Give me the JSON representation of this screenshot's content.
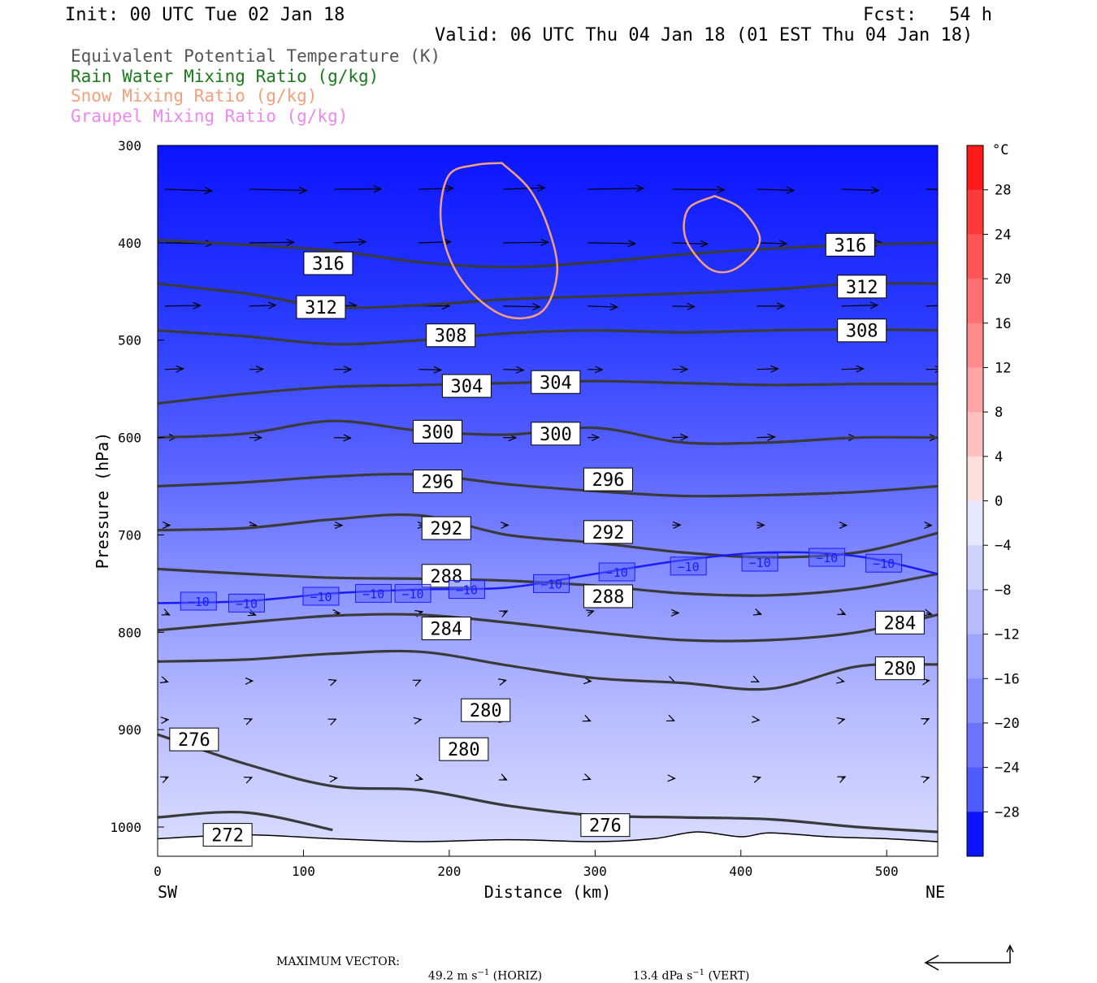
{
  "header": {
    "init": "Init: 00 UTC Tue 02 Jan 18",
    "fcst": "Fcst:   54 h",
    "valid": "Valid: 06 UTC Thu 04 Jan 18 (01 EST Thu 04 Jan 18)"
  },
  "fields": [
    {
      "label": "Equivalent Potential Temperature (K)",
      "color": "#555555"
    },
    {
      "label": "Rain Water Mixing Ratio (g/kg)",
      "color": "#1a7a1a"
    },
    {
      "label": "Snow Mixing Ratio (g/kg)",
      "color": "#f4a07a"
    },
    {
      "label": "Graupel Mixing Ratio (g/kg)",
      "color": "#ee88ee"
    }
  ],
  "colorbar": {
    "unit": "°C",
    "ticks": [
      "28",
      "24",
      "20",
      "16",
      "12",
      "8",
      "4",
      "0",
      "−4",
      "−8",
      "−12",
      "−16",
      "−20",
      "−24",
      "−28"
    ]
  },
  "footer": {
    "label": "MAXIMUM VECTOR:",
    "horiz_value": "49.2 m s",
    "horiz_unit": " (HORIZ)",
    "vert_value": "13.4 dPa s",
    "vert_unit": " (VERT)",
    "exponent": "−1"
  },
  "chart_data": {
    "type": "cross-section",
    "xlabel": "Distance (km)",
    "ylabel": "Pressure (hPa)",
    "xlim": [
      0,
      535
    ],
    "ylim": [
      1030,
      300
    ],
    "x_ticks": [
      0,
      100,
      200,
      300,
      400,
      500
    ],
    "y_ticks": [
      300,
      400,
      500,
      600,
      700,
      800,
      900,
      1000
    ],
    "x_end_labels": {
      "left": "SW",
      "right": "NE"
    },
    "theta_e_contours": [
      {
        "label": "316",
        "points": [
          [
            0,
            397
          ],
          [
            60,
            402
          ],
          [
            120,
            408
          ],
          [
            180,
            420
          ],
          [
            240,
            425
          ],
          [
            300,
            420
          ],
          [
            360,
            412
          ],
          [
            420,
            406
          ],
          [
            480,
            402
          ],
          [
            535,
            400
          ]
        ],
        "labels_at": [
          [
            117,
            421
          ],
          [
            475,
            402
          ]
        ]
      },
      {
        "label": "312",
        "points": [
          [
            0,
            442
          ],
          [
            60,
            452
          ],
          [
            120,
            466
          ],
          [
            180,
            464
          ],
          [
            240,
            458
          ],
          [
            300,
            455
          ],
          [
            360,
            452
          ],
          [
            420,
            448
          ],
          [
            480,
            442
          ],
          [
            535,
            442
          ]
        ],
        "labels_at": [
          [
            112,
            466
          ],
          [
            483,
            445
          ]
        ]
      },
      {
        "label": "308",
        "points": [
          [
            0,
            490
          ],
          [
            60,
            496
          ],
          [
            120,
            504
          ],
          [
            180,
            500
          ],
          [
            240,
            493
          ],
          [
            300,
            490
          ],
          [
            360,
            492
          ],
          [
            420,
            490
          ],
          [
            480,
            489
          ],
          [
            535,
            490
          ]
        ],
        "labels_at": [
          [
            201,
            495
          ],
          [
            483,
            490
          ]
        ]
      },
      {
        "label": "304",
        "points": [
          [
            0,
            565
          ],
          [
            60,
            555
          ],
          [
            120,
            548
          ],
          [
            180,
            546
          ],
          [
            240,
            544
          ],
          [
            300,
            542
          ],
          [
            360,
            544
          ],
          [
            420,
            546
          ],
          [
            480,
            545
          ],
          [
            535,
            545
          ]
        ],
        "labels_at": [
          [
            212,
            547
          ],
          [
            273,
            543
          ]
        ]
      },
      {
        "label": "300",
        "points": [
          [
            0,
            600
          ],
          [
            60,
            596
          ],
          [
            120,
            583
          ],
          [
            180,
            593
          ],
          [
            240,
            597
          ],
          [
            300,
            590
          ],
          [
            360,
            605
          ],
          [
            420,
            605
          ],
          [
            480,
            600
          ],
          [
            535,
            600
          ]
        ],
        "labels_at": [
          [
            192,
            594
          ],
          [
            273,
            596
          ]
        ]
      },
      {
        "label": "296",
        "points": [
          [
            0,
            650
          ],
          [
            60,
            646
          ],
          [
            120,
            640
          ],
          [
            180,
            638
          ],
          [
            240,
            648
          ],
          [
            300,
            655
          ],
          [
            360,
            660
          ],
          [
            420,
            659
          ],
          [
            480,
            656
          ],
          [
            535,
            650
          ]
        ],
        "labels_at": [
          [
            192,
            645
          ],
          [
            309,
            643
          ]
        ]
      },
      {
        "label": "292",
        "points": [
          [
            0,
            695
          ],
          [
            60,
            693
          ],
          [
            120,
            684
          ],
          [
            180,
            680
          ],
          [
            240,
            700
          ],
          [
            300,
            708
          ],
          [
            360,
            718
          ],
          [
            420,
            723
          ],
          [
            480,
            718
          ],
          [
            535,
            698
          ]
        ],
        "labels_at": [
          [
            198,
            693
          ],
          [
            309,
            697
          ]
        ]
      },
      {
        "label": "288",
        "points": [
          [
            0,
            735
          ],
          [
            60,
            740
          ],
          [
            120,
            744
          ],
          [
            180,
            745
          ],
          [
            240,
            747
          ],
          [
            300,
            752
          ],
          [
            360,
            760
          ],
          [
            420,
            762
          ],
          [
            480,
            755
          ],
          [
            535,
            740
          ]
        ],
        "labels_at": [
          [
            198,
            742
          ],
          [
            309,
            763
          ]
        ]
      },
      {
        "label": "284",
        "points": [
          [
            0,
            798
          ],
          [
            60,
            790
          ],
          [
            120,
            783
          ],
          [
            180,
            782
          ],
          [
            240,
            790
          ],
          [
            300,
            800
          ],
          [
            360,
            808
          ],
          [
            420,
            808
          ],
          [
            480,
            800
          ],
          [
            535,
            782
          ]
        ],
        "labels_at": [
          [
            198,
            796
          ],
          [
            509,
            790
          ]
        ]
      },
      {
        "label": "280",
        "points": [
          [
            0,
            830
          ],
          [
            60,
            828
          ],
          [
            120,
            822
          ],
          [
            180,
            820
          ],
          [
            240,
            834
          ],
          [
            300,
            847
          ],
          [
            360,
            852
          ],
          [
            420,
            858
          ],
          [
            480,
            835
          ],
          [
            535,
            833
          ]
        ],
        "labels_at": [
          [
            225,
            880
          ],
          [
            210,
            920
          ],
          [
            509,
            837
          ]
        ]
      },
      {
        "label": "276",
        "points": [
          [
            0,
            905
          ],
          [
            60,
            935
          ],
          [
            120,
            958
          ],
          [
            180,
            962
          ],
          [
            240,
            978
          ],
          [
            300,
            988
          ],
          [
            360,
            990
          ],
          [
            420,
            992
          ],
          [
            480,
            1000
          ],
          [
            535,
            1005
          ]
        ],
        "labels_at": [
          [
            25,
            910
          ],
          [
            307,
            998
          ]
        ]
      },
      {
        "label": "272",
        "points": [
          [
            0,
            990
          ],
          [
            60,
            985
          ],
          [
            120,
            1003
          ]
        ],
        "labels_at": [
          [
            48,
            1008
          ]
        ]
      }
    ],
    "temperature_contours": [
      {
        "label": "−10",
        "color": "#1a1aff",
        "points": [
          [
            0,
            770
          ],
          [
            60,
            768
          ],
          [
            120,
            760
          ],
          [
            180,
            756
          ],
          [
            240,
            754
          ],
          [
            300,
            740
          ],
          [
            360,
            726
          ],
          [
            420,
            718
          ],
          [
            480,
            722
          ],
          [
            535,
            740
          ]
        ],
        "labels_at": [
          [
            28,
            768
          ],
          [
            61,
            770
          ],
          [
            112,
            763
          ],
          [
            148,
            760
          ],
          [
            175,
            760
          ],
          [
            212,
            756
          ],
          [
            270,
            750
          ],
          [
            315,
            738
          ],
          [
            364,
            732
          ],
          [
            413,
            728
          ],
          [
            459,
            723
          ],
          [
            498,
            729
          ]
        ]
      }
    ],
    "snow_contours": [
      {
        "color": "#f4a07a",
        "points": [
          [
            236,
            318
          ],
          [
            255,
            345
          ],
          [
            268,
            385
          ],
          [
            274,
            430
          ],
          [
            264,
            470
          ],
          [
            240,
            476
          ],
          [
            216,
            452
          ],
          [
            200,
            415
          ],
          [
            194,
            370
          ],
          [
            200,
            330
          ],
          [
            218,
            320
          ]
        ]
      },
      {
        "color": "#f4a07a",
        "points": [
          [
            382,
            352
          ],
          [
            400,
            365
          ],
          [
            413,
            395
          ],
          [
            404,
            418
          ],
          [
            390,
            430
          ],
          [
            376,
            424
          ],
          [
            362,
            395
          ],
          [
            364,
            365
          ]
        ]
      }
    ],
    "surface_pressure": [
      [
        0,
        1012
      ],
      [
        60,
        1008
      ],
      [
        120,
        1012
      ],
      [
        180,
        1015
      ],
      [
        240,
        1013
      ],
      [
        300,
        1015
      ],
      [
        340,
        1012
      ],
      [
        370,
        1005
      ],
      [
        400,
        1010
      ],
      [
        420,
        1006
      ],
      [
        460,
        1010
      ],
      [
        500,
        1012
      ],
      [
        535,
        1015
      ]
    ]
  }
}
